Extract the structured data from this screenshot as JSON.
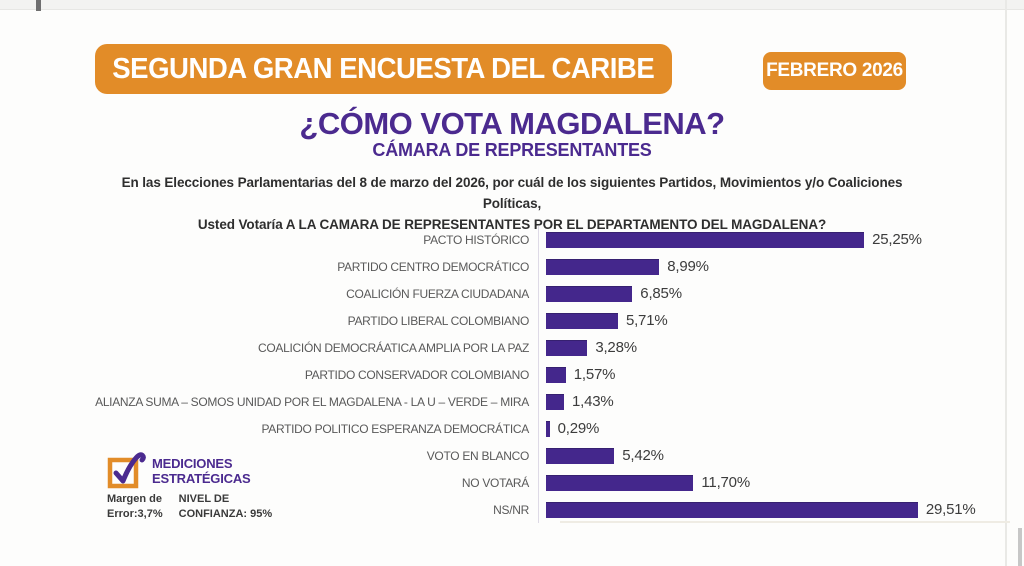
{
  "banner": {
    "title": "SEGUNDA GRAN ENCUESTA DEL CARIBE",
    "badge": "FEBRERO 2026"
  },
  "header": {
    "title": "¿CÓMO VOTA MAGDALENA?",
    "subtitle": "CÁMARA DE REPRESENTANTES"
  },
  "question": {
    "line1": "En las Elecciones Parlamentarias del 8 de marzo del 2026, por cuál de los siguientes Partidos, Movimientos y/o Coaliciones Políticas,",
    "line2": "Usted Votaría A LA CAMARA DE REPRESENTANTES POR EL DEPARTAMENTO DEL MAGDALENA?"
  },
  "chart_data": {
    "type": "bar",
    "orientation": "horizontal",
    "title": "¿CÓMO VOTA MAGDALENA? — CÁMARA DE REPRESENTANTES",
    "categories": [
      "PACTO HISTÓRICO",
      "PARTIDO CENTRO DEMOCRÁTICO",
      "COALICIÓN FUERZA CIUDADANA",
      "PARTIDO LIBERAL COLOMBIANO",
      "COALICIÓN DEMOCRÁATICA AMPLIA POR LA PAZ",
      "PARTIDO CONSERVADOR COLOMBIANO",
      "ALIANZA SUMA – SOMOS UNIDAD POR EL MAGDALENA - LA U – VERDE – MIRA",
      "PARTIDO POLITICO ESPERANZA DEMOCRÁTICA",
      "VOTO EN BLANCO",
      "NO VOTARÁ",
      "NS/NR"
    ],
    "values": [
      25.25,
      8.99,
      6.85,
      5.71,
      3.28,
      1.57,
      1.43,
      0.29,
      5.42,
      11.7,
      29.51
    ],
    "value_labels": [
      "25,25%",
      "8,99%",
      "6,85%",
      "5,71%",
      "3,28%",
      "1,57%",
      "1,43%",
      "0,29%",
      "5,42%",
      "11,70%",
      "29,51%"
    ],
    "xlim": [
      0,
      30
    ],
    "grid": false,
    "legend": false,
    "bar_color": "#44278C"
  },
  "footer": {
    "logo_line1": "MEDICIONES",
    "logo_line2": "ESTRATÉGICAS",
    "margin_label": "Margen de",
    "margin_value": "Error:3,7%",
    "confidence_label": "NIVEL DE",
    "confidence_value": "CONFIANZA: 95%"
  },
  "colors": {
    "accent_orange": "#E28C28",
    "brand_purple": "#4B2A8F",
    "bar_purple": "#44278C",
    "label_gray": "#595959",
    "value_gray": "#3c3c3c"
  }
}
